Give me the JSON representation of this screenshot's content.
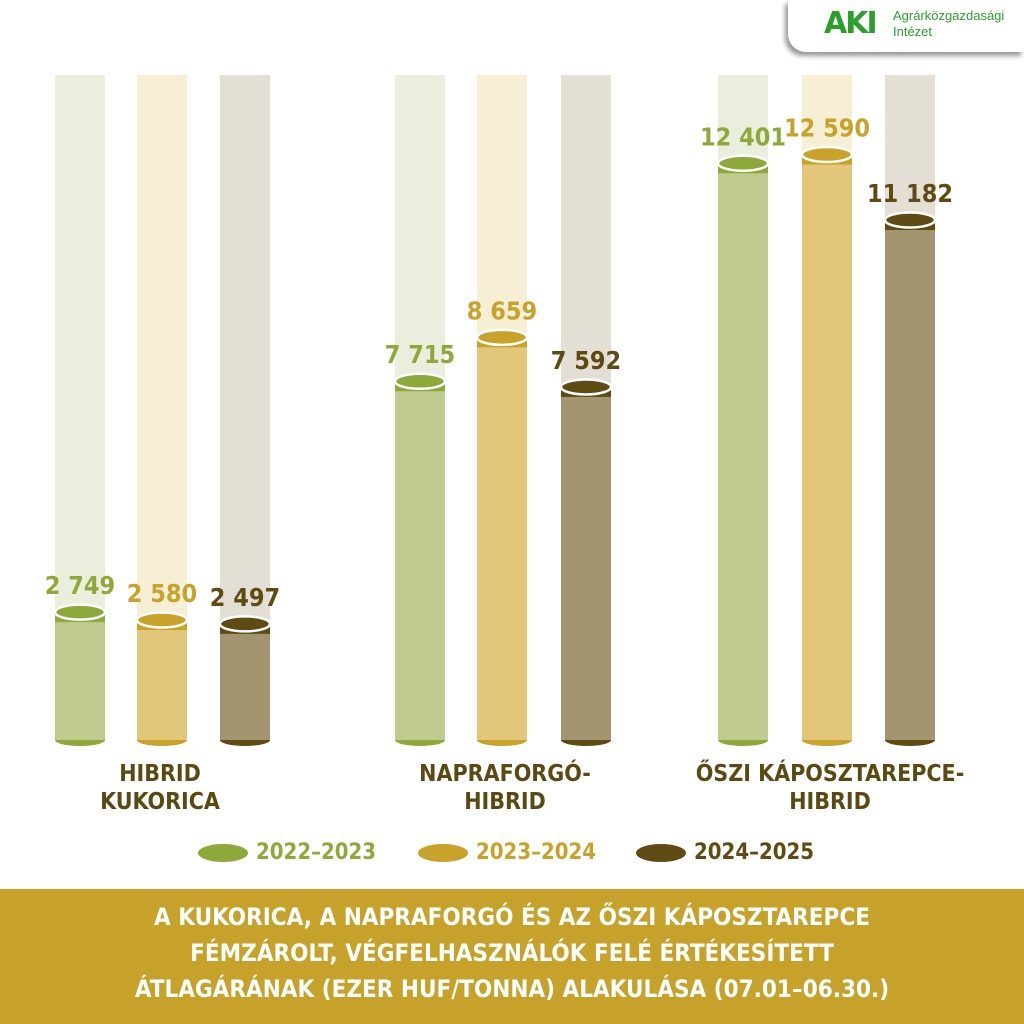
{
  "logo": {
    "mark": "AKI",
    "line1": "Agrárközgazdasági",
    "line2": "Intézet"
  },
  "chart_data": {
    "type": "bar",
    "categories": [
      "HIBRID KUKORICA",
      "NAPRAFORGÓ-HIBRID",
      "ŐSZI KÁPOSZTAREPCE-HIBRID"
    ],
    "category_lines": [
      [
        "HIBRID",
        "KUKORICA"
      ],
      [
        "NAPRAFORGÓ-",
        "HIBRID"
      ],
      [
        "ŐSZI KÁPOSZTAREPCE-",
        "HIBRID"
      ]
    ],
    "series": [
      {
        "name": "2022–2023",
        "values": [
          2749,
          7715,
          12401
        ],
        "labels": [
          "2 749",
          "7 715",
          "12 401"
        ],
        "color": "#bfcb8f",
        "cap": "#8fa83a",
        "track": "#e9efdc",
        "text": "#8fa83a"
      },
      {
        "name": "2023–2024",
        "values": [
          2580,
          8659,
          12590
        ],
        "labels": [
          "2 580",
          "8 659",
          "12 590"
        ],
        "color": "#e2c77b",
        "cap": "#c9a22a",
        "track": "#f6efd6",
        "text": "#c9a22a"
      },
      {
        "name": "2024–2025",
        "values": [
          2497,
          7592,
          11182
        ],
        "labels": [
          "2 497",
          "7 592",
          "11 182"
        ],
        "color": "#a29570",
        "cap": "#5e4b14",
        "track": "#e4dfd4",
        "text": "#5e4b14"
      }
    ],
    "ylim": [
      0,
      14300
    ],
    "grid": false,
    "legend": "bottom",
    "title_lines": [
      "A KUKORICA, A NAPRAFORGÓ ÉS AZ ŐSZI KÁPOSZTAREPCE",
      "FÉMZÁROLT,  VÉGFELHASZNÁLÓK FELÉ ÉRTÉKESÍTETT",
      "ÁTLAGÁRÁNAK (EZER HUF/TONNA) ALAKULÁSA (07.01–06.30.)"
    ]
  }
}
